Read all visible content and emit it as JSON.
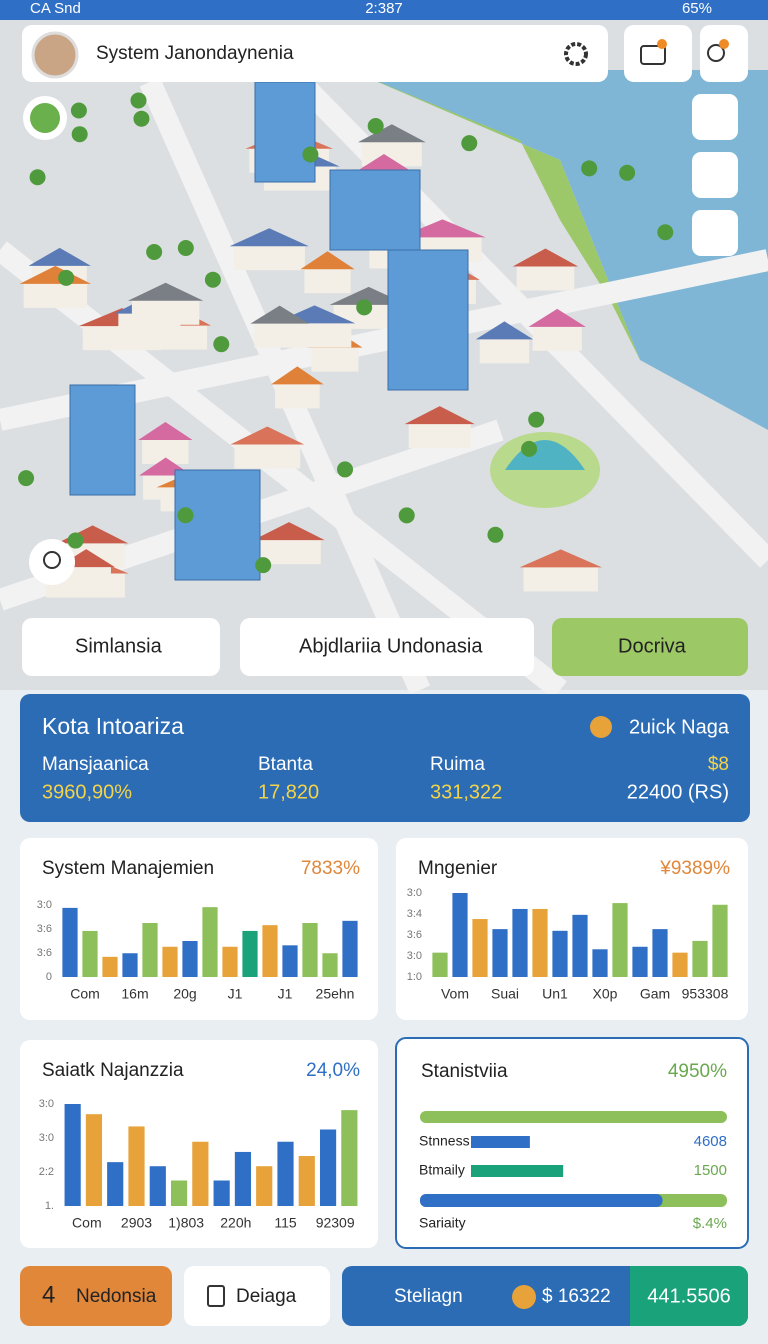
{
  "status_bar": {
    "carrier": "CA Snd",
    "time": "2:387",
    "battery": "65%"
  },
  "header": {
    "title": "System Janondaynenia"
  },
  "tabs": [
    "Simlansia",
    "Abjdlariia Undonasia",
    "Docriva"
  ],
  "info_panel": {
    "title": "Kota Intoariza",
    "badge": "2uick Naga",
    "stats": [
      {
        "label": "Mansjaanica",
        "value": "3960,90%"
      },
      {
        "label": "Btanta",
        "value": "17,820"
      },
      {
        "label": "Ruima",
        "value": "331,322"
      },
      {
        "label": "$8",
        "value": "22400 (RS)"
      }
    ]
  },
  "charts": [
    {
      "type": "bar",
      "title": "System Manajemien",
      "headline": "7833%",
      "ylim": [
        0,
        100
      ],
      "ytick_labels": [
        "3:0",
        "3:6",
        "3:6",
        "0"
      ],
      "x_labels": [
        "Com",
        "16m",
        "20g",
        "J1",
        "J1",
        "25ehn"
      ],
      "values": [
        96,
        64,
        28,
        33,
        75,
        42,
        50,
        97,
        42,
        64,
        72,
        44,
        75,
        33,
        78
      ],
      "colors": [
        "#2f6fc6",
        "#8dc05a",
        "#e8a23a",
        "#2f6fc6",
        "#8dc05a",
        "#e8a23a",
        "#2f6fc6",
        "#8dc05a",
        "#e8a23a",
        "#1aa37a",
        "#e8a23a",
        "#2f6fc6",
        "#8dc05a",
        "#8dc05a",
        "#2f6fc6"
      ]
    },
    {
      "type": "bar",
      "title": "Mngenier",
      "headline": "¥9389%",
      "ylim": [
        0,
        100
      ],
      "ytick_labels": [
        "3:0",
        "3:4",
        "3:6",
        "3:0",
        "1:0"
      ],
      "x_labels": [
        "Vom",
        "Suai",
        "Un1",
        "X0p",
        "Gam",
        "953308"
      ],
      "values": [
        29,
        100,
        69,
        57,
        81,
        81,
        55,
        74,
        33,
        88,
        36,
        57,
        29,
        43,
        86
      ],
      "colors": [
        "#8dc05a",
        "#2f6fc6",
        "#e8a23a",
        "#2f6fc6",
        "#2f6fc6",
        "#e8a23a",
        "#2f6fc6",
        "#2f6fc6",
        "#2f6fc6",
        "#8dc05a",
        "#2f6fc6",
        "#2f6fc6",
        "#e8a23a",
        "#8dc05a",
        "#8dc05a"
      ]
    },
    {
      "type": "bar",
      "title": "Saiatk Najanzzia",
      "headline": "24,0%",
      "ylim": [
        0,
        100
      ],
      "ytick_labels": [
        "3:0",
        "3:0",
        "2:2",
        "1."
      ],
      "x_labels": [
        "Com",
        "2903",
        "1)803",
        "220h",
        "115",
        "92309"
      ],
      "values": [
        100,
        90,
        43,
        78,
        39,
        25,
        63,
        25,
        53,
        39,
        63,
        49,
        75,
        94
      ],
      "colors": [
        "#2f6fc6",
        "#e8a23a",
        "#2f6fc6",
        "#e8a23a",
        "#2f6fc6",
        "#8dc05a",
        "#e8a23a",
        "#2f6fc6",
        "#2f6fc6",
        "#e8a23a",
        "#2f6fc6",
        "#e8a23a",
        "#2f6fc6",
        "#8dc05a"
      ]
    }
  ],
  "stats_card": {
    "title": "Stanistviia",
    "headline": "4950%",
    "rows": [
      {
        "label": "Stnness",
        "value": "4608",
        "bar": 23,
        "color": "#2f6fc6"
      },
      {
        "label": "Btmaily",
        "value": "1500",
        "bar": 36,
        "color": "#1aa37a"
      },
      {
        "label": "Sariaity",
        "value": "$.4%",
        "bar": 79,
        "color": "#2f6fc6"
      }
    ],
    "top_bar": 100
  },
  "bottom_bar": {
    "left_icon": "4",
    "left": "Nedonsia",
    "middle": "Deiaga",
    "action": "Steliagn",
    "coins": "$ 16322",
    "score": "441.5506"
  }
}
